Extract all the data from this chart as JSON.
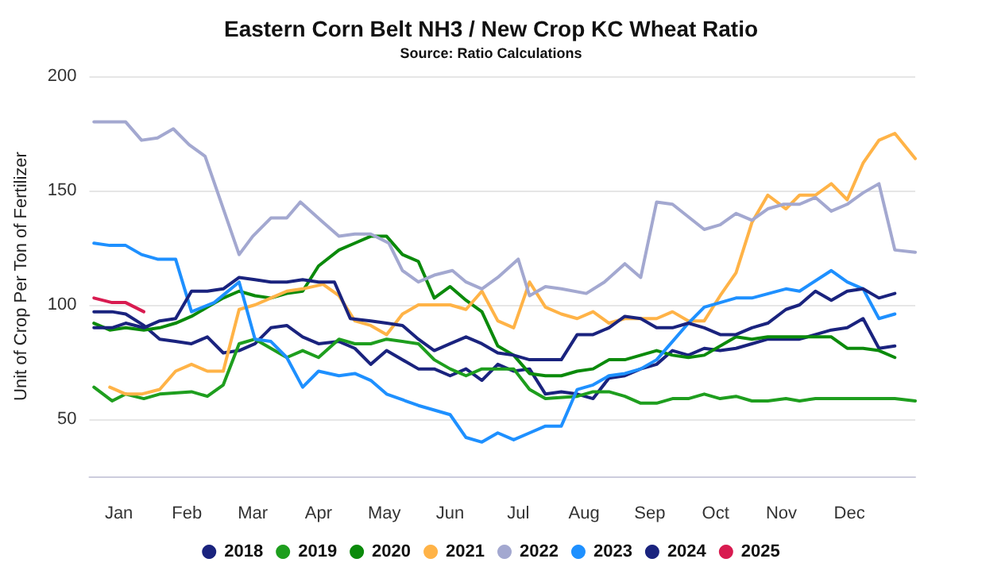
{
  "chart_data": {
    "type": "line",
    "title": "Eastern Corn Belt NH3 / New Crop KC Wheat Ratio",
    "subtitle": "Source: Ratio Calculations",
    "ylabel": "Unit of Crop Per Ton of Fertilizer",
    "xlim": [
      "--01-01",
      "--12-31"
    ],
    "xticks": [
      {
        "value": "--01-14",
        "label": "Jan"
      },
      {
        "value": "--02-13",
        "label": "Feb"
      },
      {
        "value": "--03-14",
        "label": "Mar"
      },
      {
        "value": "--04-12",
        "label": "Apr"
      },
      {
        "value": "--05-11",
        "label": "May"
      },
      {
        "value": "--06-09",
        "label": "Jun"
      },
      {
        "value": "--07-09",
        "label": "Jul"
      },
      {
        "value": "--08-07",
        "label": "Aug"
      },
      {
        "value": "--09-05",
        "label": "Sep"
      },
      {
        "value": "--10-04",
        "label": "Oct"
      },
      {
        "value": "--11-02",
        "label": "Nov"
      },
      {
        "value": "--12-02",
        "label": "Dec"
      }
    ],
    "ylim": [
      25,
      200
    ],
    "yticks": [
      50,
      100,
      150,
      200
    ],
    "grid": "y",
    "legend": "bottom",
    "marker": "none",
    "line_style": "solid",
    "series": [
      {
        "name": "2018",
        "color": "#1a237e",
        "x": [
          "--01-03",
          "--01-11",
          "--01-17",
          "--01-25",
          "--02-01",
          "--02-08",
          "--02-15",
          "--02-22",
          "--03-01",
          "--03-08",
          "--03-15",
          "--03-22",
          "--03-29",
          "--04-05",
          "--04-12",
          "--04-21",
          "--04-28",
          "--05-05",
          "--05-12",
          "--05-26",
          "--06-02",
          "--06-09",
          "--06-16",
          "--06-23",
          "--06-30",
          "--07-07",
          "--07-14",
          "--07-21",
          "--07-28",
          "--08-04",
          "--08-11",
          "--08-18",
          "--08-25",
          "--09-01",
          "--09-08",
          "--09-15",
          "--09-22",
          "--09-29",
          "--10-06",
          "--10-13",
          "--10-20",
          "--10-27",
          "--11-10",
          "--11-17",
          "--11-24",
          "--12-01",
          "--12-08",
          "--12-15",
          "--12-22"
        ],
        "values": [
          97,
          97,
          96,
          91,
          85,
          84,
          83,
          86,
          79,
          80,
          83,
          90,
          91,
          86,
          83,
          84,
          81,
          74,
          80,
          72,
          72,
          69,
          72,
          67,
          74,
          71,
          72,
          61,
          62,
          61,
          59,
          68,
          69,
          72,
          74,
          80,
          78,
          81,
          80,
          81,
          83,
          85,
          85,
          87,
          89,
          90,
          94,
          81,
          82
        ]
      },
      {
        "name": "2019",
        "color": "#1e9e1e",
        "x": [
          "--01-03",
          "--01-11",
          "--01-17",
          "--01-25",
          "--02-01",
          "--02-15",
          "--02-22",
          "--03-01",
          "--03-08",
          "--03-15",
          "--03-22",
          "--03-29",
          "--04-05",
          "--04-12",
          "--04-21",
          "--04-28",
          "--05-05",
          "--05-12",
          "--05-26",
          "--06-02",
          "--06-09",
          "--06-16",
          "--06-23",
          "--07-07",
          "--07-14",
          "--07-21",
          "--08-04",
          "--08-11",
          "--08-18",
          "--08-25",
          "--09-01",
          "--09-08",
          "--09-15",
          "--09-22",
          "--09-29",
          "--10-06",
          "--10-13",
          "--10-20",
          "--10-27",
          "--11-04",
          "--11-10",
          "--11-17",
          "--12-01",
          "--12-15",
          "--12-22",
          "--12-31"
        ],
        "values": [
          64,
          58,
          61,
          59,
          61,
          62,
          60,
          65,
          83,
          85,
          81,
          77,
          80,
          77,
          85,
          83,
          83,
          85,
          83,
          76,
          72,
          69,
          72,
          72,
          63,
          59,
          60,
          62,
          62,
          60,
          57,
          57,
          59,
          59,
          61,
          59,
          60,
          58,
          58,
          59,
          58,
          59,
          59,
          59,
          59,
          58
        ]
      },
      {
        "name": "2020",
        "color": "#0b8a0b",
        "x": [
          "--01-03",
          "--01-10",
          "--01-17",
          "--01-25",
          "--02-01",
          "--02-08",
          "--02-15",
          "--02-22",
          "--03-01",
          "--03-08",
          "--03-15",
          "--03-22",
          "--03-29",
          "--04-05",
          "--04-12",
          "--04-21",
          "--04-28",
          "--05-05",
          "--05-12",
          "--05-19",
          "--05-26",
          "--06-02",
          "--06-09",
          "--06-16",
          "--06-23",
          "--06-30",
          "--07-07",
          "--07-14",
          "--07-21",
          "--07-28",
          "--08-04",
          "--08-11",
          "--08-18",
          "--08-25",
          "--09-01",
          "--09-08",
          "--09-15",
          "--09-22",
          "--09-29",
          "--10-13",
          "--10-20",
          "--10-27",
          "--11-10",
          "--11-24",
          "--12-01",
          "--12-08",
          "--12-15",
          "--12-22"
        ],
        "values": [
          92,
          89,
          90,
          89,
          90,
          92,
          95,
          99,
          103,
          106,
          104,
          103,
          105,
          106,
          117,
          124,
          127,
          130,
          130,
          122,
          119,
          103,
          108,
          102,
          97,
          82,
          78,
          70,
          69,
          69,
          71,
          72,
          76,
          76,
          78,
          80,
          78,
          77,
          78,
          86,
          85,
          86,
          86,
          86,
          81,
          81,
          80,
          77
        ]
      },
      {
        "name": "2021",
        "color": "#ffb347",
        "x": [
          "--01-10",
          "--01-17",
          "--01-24",
          "--02-01",
          "--02-08",
          "--02-15",
          "--02-22",
          "--03-01",
          "--03-08",
          "--03-15",
          "--03-22",
          "--03-29",
          "--04-05",
          "--04-14",
          "--04-21",
          "--04-28",
          "--05-05",
          "--05-12",
          "--05-19",
          "--05-26",
          "--06-09",
          "--06-16",
          "--06-23",
          "--06-30",
          "--07-07",
          "--07-14",
          "--07-21",
          "--07-28",
          "--08-04",
          "--08-11",
          "--08-18",
          "--08-25",
          "--09-08",
          "--09-15",
          "--09-22",
          "--09-29",
          "--10-06",
          "--10-13",
          "--10-20",
          "--10-27",
          "--11-04",
          "--11-10",
          "--11-17",
          "--11-24",
          "--12-01",
          "--12-08",
          "--12-15",
          "--12-22",
          "--12-31"
        ],
        "values": [
          64,
          61,
          61,
          63,
          71,
          74,
          71,
          71,
          98,
          100,
          103,
          106,
          107,
          109,
          104,
          93,
          91,
          87,
          96,
          100,
          100,
          98,
          106,
          93,
          90,
          110,
          99,
          96,
          94,
          97,
          92,
          94,
          94,
          97,
          93,
          93,
          104,
          114,
          136,
          148,
          142,
          148,
          148,
          153,
          146,
          162,
          172,
          175,
          164
        ]
      },
      {
        "name": "2022",
        "color": "#a3a8d0",
        "x": [
          "--01-03",
          "--01-10",
          "--01-17",
          "--01-24",
          "--01-31",
          "--02-07",
          "--02-14",
          "--02-21",
          "--03-08",
          "--03-14",
          "--03-22",
          "--03-29",
          "--04-04",
          "--04-13",
          "--04-21",
          "--04-28",
          "--05-05",
          "--05-13",
          "--05-19",
          "--05-26",
          "--06-02",
          "--06-10",
          "--06-16",
          "--06-23",
          "--06-30",
          "--07-09",
          "--07-14",
          "--07-21",
          "--07-28",
          "--08-08",
          "--08-16",
          "--08-25",
          "--09-01",
          "--09-08",
          "--09-15",
          "--09-29",
          "--10-06",
          "--10-13",
          "--10-20",
          "--10-27",
          "--11-03",
          "--11-10",
          "--11-17",
          "--11-24",
          "--12-01",
          "--12-08",
          "--12-15",
          "--12-22",
          "--12-31"
        ],
        "values": [
          180,
          180,
          180,
          172,
          173,
          177,
          170,
          165,
          122,
          130,
          138,
          138,
          145,
          137,
          130,
          131,
          131,
          127,
          115,
          110,
          113,
          115,
          110,
          107,
          112,
          120,
          104,
          108,
          107,
          105,
          110,
          118,
          112,
          145,
          144,
          133,
          135,
          140,
          137,
          142,
          144,
          144,
          147,
          141,
          144,
          149,
          153,
          124,
          123
        ]
      },
      {
        "name": "2023",
        "color": "#1e90ff",
        "x": [
          "--01-03",
          "--01-10",
          "--01-17",
          "--01-24",
          "--01-31",
          "--02-08",
          "--02-15",
          "--02-25",
          "--03-08",
          "--03-15",
          "--03-22",
          "--03-29",
          "--04-05",
          "--04-12",
          "--04-21",
          "--04-28",
          "--05-05",
          "--05-12",
          "--05-26",
          "--06-09",
          "--06-16",
          "--06-23",
          "--06-30",
          "--07-07",
          "--07-14",
          "--07-21",
          "--07-28",
          "--08-04",
          "--08-11",
          "--08-18",
          "--08-25",
          "--09-01",
          "--09-08",
          "--09-15",
          "--09-22",
          "--09-29",
          "--10-13",
          "--10-20",
          "--11-04",
          "--11-10",
          "--11-24",
          "--12-01",
          "--12-08",
          "--12-15",
          "--12-22"
        ],
        "values": [
          127,
          126,
          126,
          122,
          120,
          120,
          97,
          101,
          110,
          85,
          84,
          77,
          64,
          71,
          69,
          70,
          67,
          61,
          56,
          52,
          42,
          40,
          44,
          41,
          44,
          47,
          47,
          63,
          65,
          69,
          70,
          72,
          76,
          84,
          92,
          99,
          103,
          103,
          107,
          106,
          115,
          110,
          107,
          94,
          96
        ]
      },
      {
        "name": "2024",
        "color": "#1a237e",
        "x": [
          "--01-03",
          "--01-11",
          "--01-17",
          "--01-25",
          "--02-01",
          "--02-08",
          "--02-15",
          "--02-22",
          "--03-01",
          "--03-08",
          "--03-15",
          "--03-22",
          "--03-29",
          "--04-05",
          "--04-12",
          "--04-19",
          "--04-26",
          "--05-05",
          "--05-12",
          "--05-19",
          "--05-26",
          "--06-02",
          "--06-09",
          "--06-16",
          "--06-23",
          "--06-30",
          "--07-07",
          "--07-14",
          "--07-28",
          "--08-04",
          "--08-11",
          "--08-18",
          "--08-25",
          "--09-01",
          "--09-08",
          "--09-15",
          "--09-22",
          "--09-29",
          "--10-06",
          "--10-13",
          "--10-20",
          "--10-27",
          "--11-04",
          "--11-10",
          "--11-17",
          "--11-24",
          "--12-01",
          "--12-08",
          "--12-15",
          "--12-22"
        ],
        "values": [
          90,
          90,
          92,
          90,
          93,
          94,
          106,
          106,
          107,
          112,
          111,
          110,
          110,
          111,
          110,
          110,
          94,
          93,
          92,
          91,
          85,
          80,
          83,
          86,
          83,
          79,
          78,
          76,
          76,
          87,
          87,
          90,
          95,
          94,
          90,
          90,
          92,
          90,
          87,
          87,
          90,
          92,
          98,
          100,
          106,
          102,
          106,
          107,
          103,
          105
        ]
      },
      {
        "name": "2025",
        "color": "#d81b50",
        "x": [
          "--01-03",
          "--01-11",
          "--01-17",
          "--01-25"
        ],
        "values": [
          103,
          101,
          101,
          97
        ]
      }
    ]
  }
}
